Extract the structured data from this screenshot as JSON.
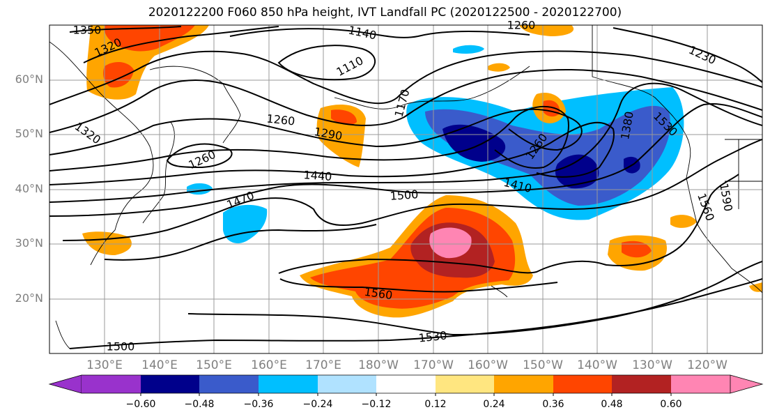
{
  "title": "2020122200 F060 850 hPa height, IVT Landfall PC (2020122500 - 2020122700)",
  "lat_labels": [
    "60°N",
    "50°N",
    "40°N",
    "30°N",
    "20°N"
  ],
  "lon_labels": [
    "130°E",
    "140°E",
    "150°E",
    "160°E",
    "170°E",
    "180°W",
    "170°W",
    "160°W",
    "150°W",
    "140°W",
    "130°W",
    "120°W"
  ],
  "contour_labels": [
    "1350",
    "1320",
    "1140",
    "1260",
    "1230",
    "1110",
    "1170",
    "1320",
    "1260",
    "1290",
    "1260",
    "1380",
    "1530",
    "1260",
    "1410",
    "1440",
    "1500",
    "1470",
    "1590",
    "1560",
    "1560",
    "1530",
    "1500"
  ],
  "colorbar": {
    "ticks": [
      "−0.60",
      "−0.48",
      "−0.36",
      "−0.24",
      "−0.12",
      "0.12",
      "0.24",
      "0.36",
      "0.48",
      "0.60"
    ],
    "colors": [
      "#9932cc",
      "#00008b",
      "#3a5bcb",
      "#00bfff",
      "#b0e2ff",
      "#ffffff",
      "#ffe680",
      "#ffa500",
      "#ff4500",
      "#b22222",
      "#ff85b3"
    ]
  }
}
